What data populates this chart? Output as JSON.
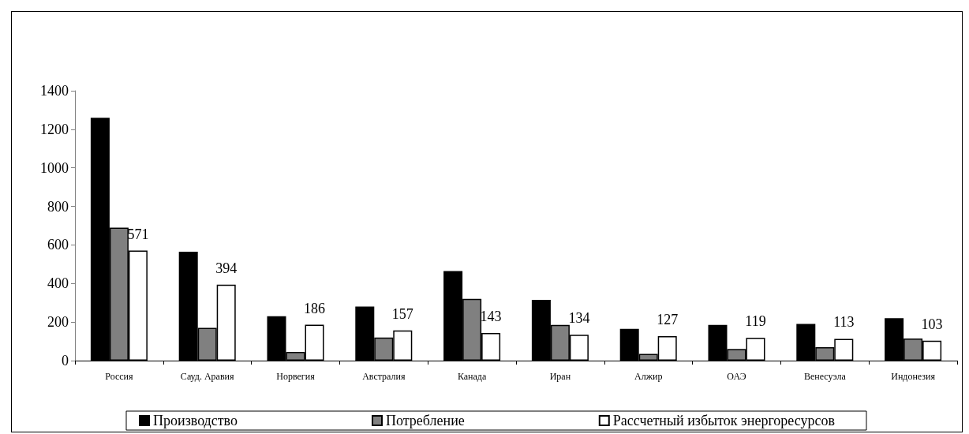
{
  "chart_data": {
    "type": "bar",
    "categories": [
      "Россия",
      "Сауд. Аравия",
      "Норвегия",
      "Австралия",
      "Канада",
      "Иран",
      "Алжир",
      "ОАЭ",
      "Венесуэла",
      "Индонезия"
    ],
    "series": [
      {
        "name": "Производство",
        "color": "#000000",
        "values": [
          1260,
          565,
          230,
          280,
          465,
          315,
          165,
          185,
          190,
          220
        ]
      },
      {
        "name": "Потребление",
        "color": "#808080",
        "values": [
          690,
          170,
          45,
          120,
          320,
          185,
          35,
          60,
          70,
          115
        ]
      },
      {
        "name": "Рассчетный избыток энергоресурсов",
        "color": "#ffffff",
        "values": [
          571,
          394,
          186,
          157,
          143,
          134,
          127,
          119,
          113,
          103
        ],
        "value_labels": [
          "571",
          "394",
          "186",
          "157",
          "143",
          "134",
          "127",
          "119",
          "113",
          "103"
        ]
      }
    ],
    "ylim": [
      0,
      1400
    ],
    "yticks": [
      0,
      200,
      400,
      600,
      800,
      1000,
      1200,
      1400
    ],
    "grid": false,
    "legend": "bottom"
  }
}
